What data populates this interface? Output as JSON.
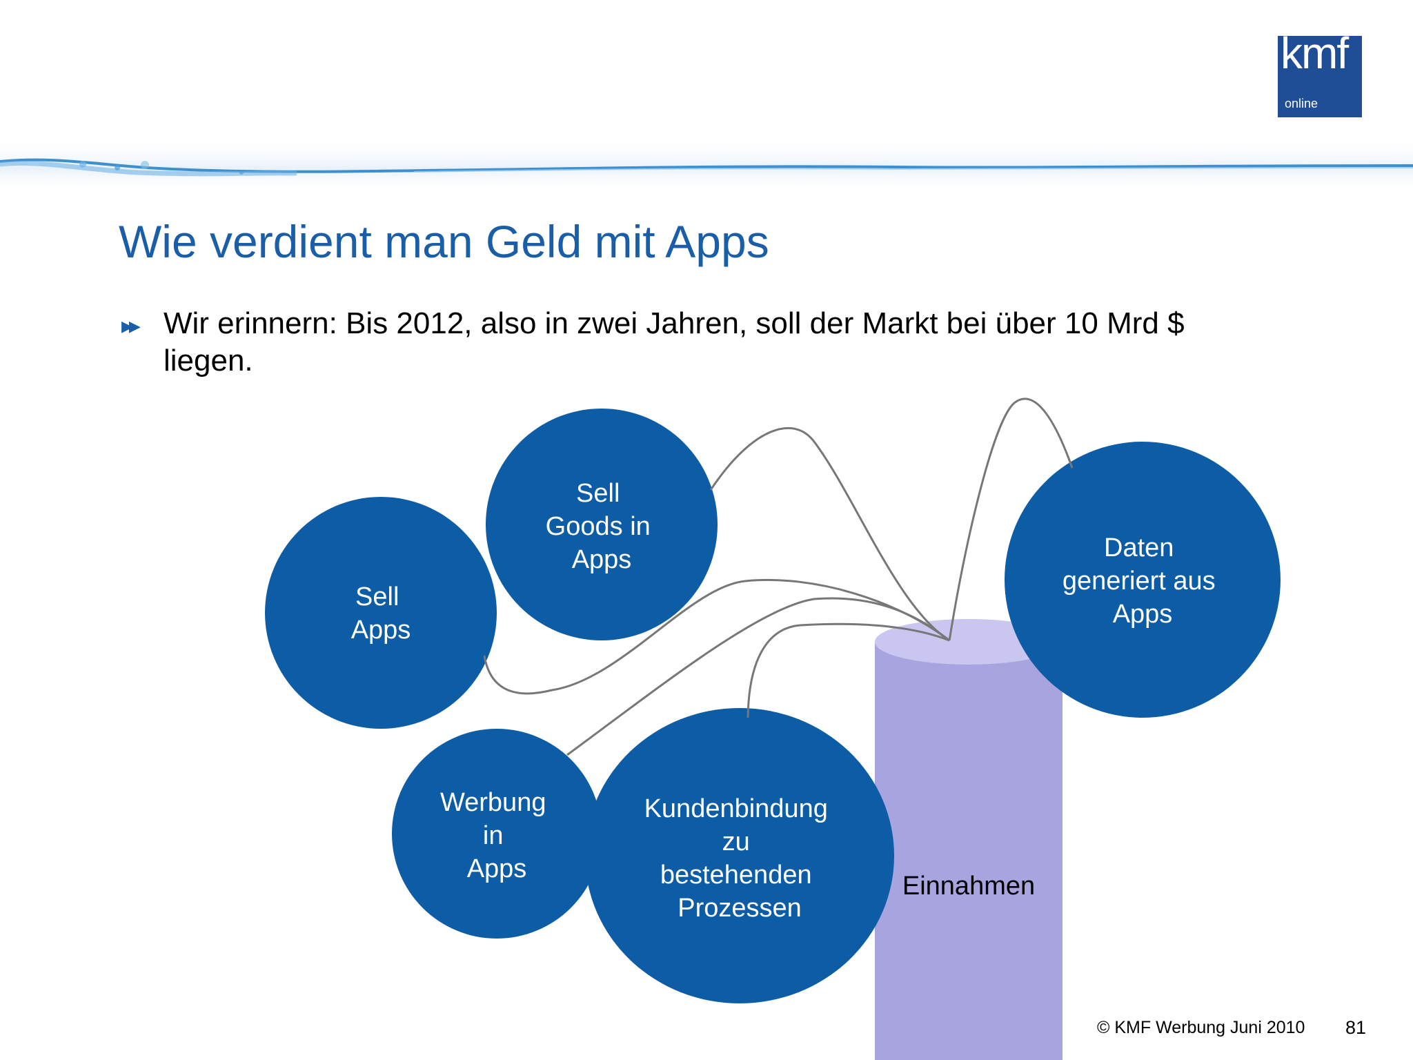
{
  "logo": {
    "main": "kmf",
    "sub": "online"
  },
  "title": "Wie verdient man Geld mit Apps",
  "bullet": {
    "icon": "double-arrow-bullet-icon",
    "text": "Wir erinnern: Bis 2012, also in zwei Jahren, soll der Markt bei über 10 Mrd $ liegen."
  },
  "diagram": {
    "circles": [
      {
        "name": "circle-sell-apps",
        "lines": [
          "Sell",
          "Apps"
        ]
      },
      {
        "name": "circle-sell-goods-in-apps",
        "lines": [
          "Sell",
          "Goods in",
          "Apps"
        ]
      },
      {
        "name": "circle-daten-generiert-aus-apps",
        "lines": [
          "Daten",
          "generiert aus",
          "Apps"
        ]
      },
      {
        "name": "circle-werbung-in-apps",
        "lines": [
          "Werbung",
          "in",
          "Apps"
        ]
      },
      {
        "name": "circle-kundenbindung",
        "lines": [
          "Kundenbindung",
          "zu",
          "bestehenden",
          "Prozessen"
        ]
      }
    ],
    "cylinder_label": "Einnahmen",
    "colors": {
      "circle": "#0d5ca6",
      "cylinder": "#a7a4df",
      "cylinder_top": "#c9c7ef",
      "connector": "#777777"
    }
  },
  "footer": {
    "copyright": "© KMF Werbung Juni 2010",
    "page": "81"
  }
}
